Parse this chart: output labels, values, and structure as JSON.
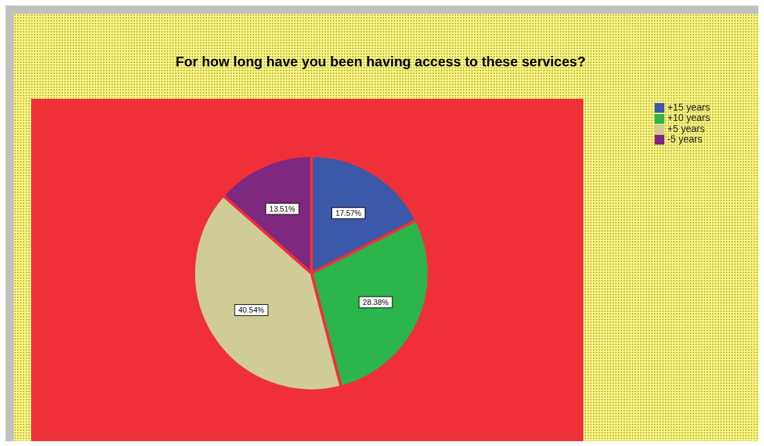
{
  "chart_data": {
    "type": "pie",
    "title": "For how long have you been having access to these services?",
    "categories": [
      "+15 years",
      "+10 years",
      "+5 years",
      "-5 years"
    ],
    "values": [
      17.57,
      28.38,
      40.54,
      13.51
    ],
    "colors": [
      "#3c58a8",
      "#2bb54a",
      "#d0cc98",
      "#7e2880"
    ],
    "value_labels": [
      "17.57%",
      "28.38%",
      "40.54%",
      "13.51%"
    ],
    "legend": "top right"
  }
}
